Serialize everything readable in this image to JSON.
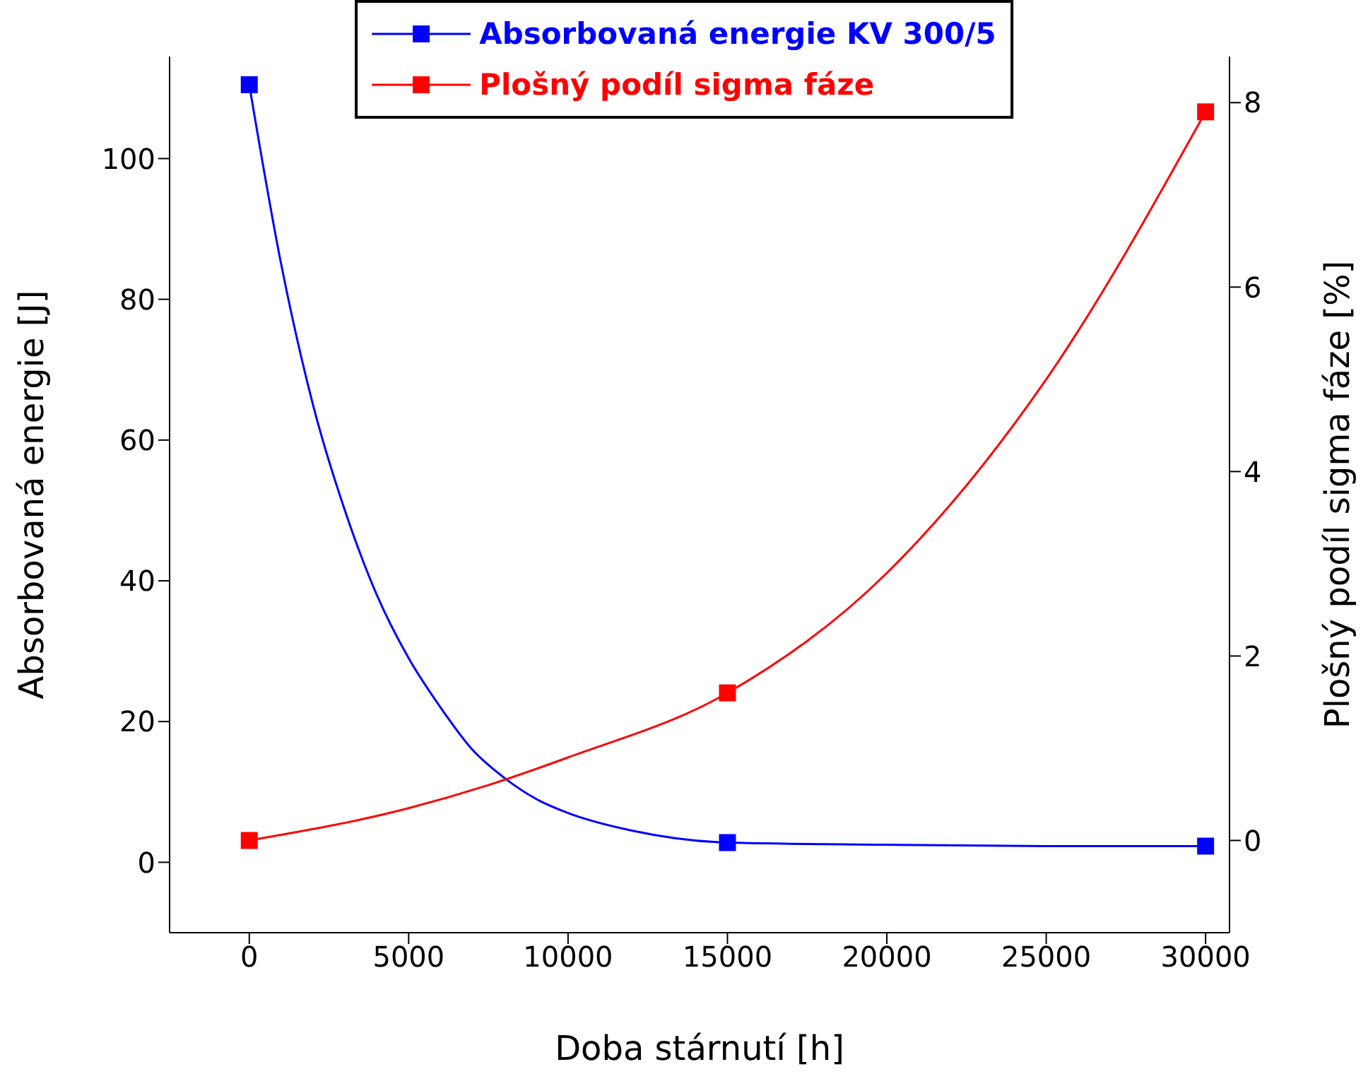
{
  "chart_data": {
    "type": "scatter",
    "xlabel": "Doba stárnutí [h]",
    "ylabel": "Absorbovaná energie [J]",
    "y2label": "Plošný podíl sigma fáze [%]",
    "x": [
      0,
      15000,
      30000
    ],
    "series": [
      {
        "name": "Absorbovaná energie KV 300/5",
        "color": "#0000ff",
        "type": "scatter",
        "marker": "square",
        "values": [
          110.5,
          2.8,
          2.3
        ]
      },
      {
        "name": "Plošný podíl sigma fáze",
        "color": "#ff0000",
        "type": "scatter",
        "marker": "square",
        "axis": "y2",
        "values": [
          0,
          1.6,
          7.9
        ]
      },
      {
        "color": "#0000ff",
        "type": "line",
        "marker": "none",
        "x": [
          0,
          1000,
          2000,
          3000,
          4000,
          5000,
          6000,
          7000,
          8000,
          9000,
          10000,
          12000,
          15000,
          20000,
          25000,
          30000
        ],
        "values": [
          110.5,
          85,
          65,
          50,
          38,
          29,
          22,
          16,
          12,
          9,
          7,
          4.5,
          2.8,
          2.5,
          2.3,
          2.3
        ]
      },
      {
        "color": "#ff0000",
        "type": "line",
        "marker": "none",
        "axis": "y2",
        "x": [
          0,
          5000,
          7500,
          10000,
          15000,
          20000,
          25000,
          30000
        ],
        "values": [
          0,
          0.35,
          0.6,
          0.9,
          1.6,
          2.9,
          5.0,
          7.9
        ]
      }
    ],
    "xlim": [
      -2500,
      30750
    ],
    "xticks": [
      0,
      5000,
      10000,
      15000,
      20000,
      25000,
      30000
    ],
    "ylim": [
      -10,
      114.5
    ],
    "yticks": [
      0,
      20,
      40,
      60,
      80,
      100
    ],
    "y2lim": [
      -1,
      8.5
    ],
    "y2ticks": [
      0,
      2,
      4,
      6,
      8
    ],
    "grid": false,
    "legend": "top"
  }
}
